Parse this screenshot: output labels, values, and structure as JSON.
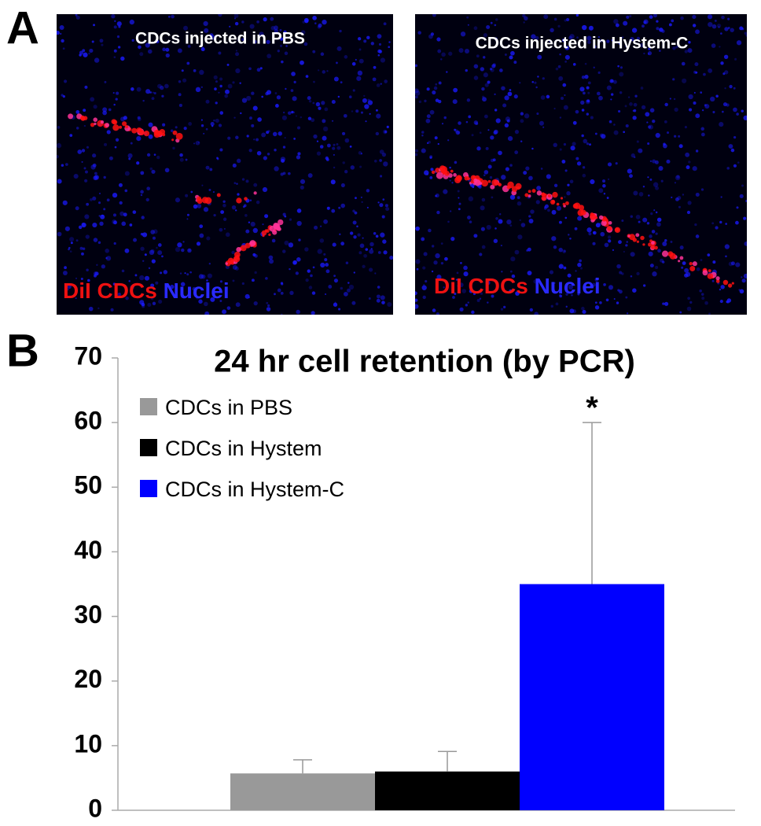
{
  "panel_a": {
    "label": "A",
    "images": [
      {
        "caption": "CDCs injected in PBS",
        "stain_labels": [
          "DiI CDCs",
          "Nuclei"
        ]
      },
      {
        "caption": "CDCs injected in Hystem-C",
        "stain_labels": [
          "DiI CDCs",
          "Nuclei"
        ]
      }
    ]
  },
  "panel_b": {
    "label": "B"
  },
  "chart_data": {
    "type": "bar",
    "title": "24 hr cell retention (by PCR)",
    "series": [
      {
        "name": "CDCs in PBS",
        "color": "#999999",
        "values": [
          5.7
        ],
        "errors": [
          2.1
        ]
      },
      {
        "name": "CDCs in Hystem",
        "color": "#000000",
        "values": [
          6.0
        ],
        "errors": [
          3.1
        ]
      },
      {
        "name": "CDCs in Hystem-C",
        "color": "#0000ff",
        "values": [
          35
        ],
        "errors": [
          25
        ]
      }
    ],
    "annotations": [
      {
        "text": "*",
        "series": 2
      }
    ],
    "ylim": [
      0,
      70
    ],
    "yticks": [
      0,
      10,
      20,
      30,
      40,
      50,
      60,
      70
    ],
    "grid": false,
    "legend": "top-left"
  }
}
